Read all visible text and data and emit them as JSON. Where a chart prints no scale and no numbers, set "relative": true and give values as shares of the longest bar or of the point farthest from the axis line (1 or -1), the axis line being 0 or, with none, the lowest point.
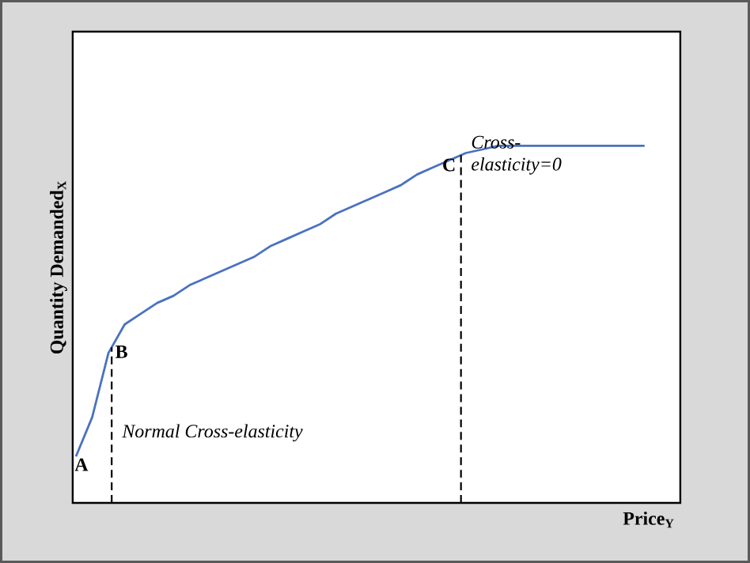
{
  "chart_data": {
    "type": "line",
    "relative": true,
    "xlabel": "Price$_{Y}$",
    "ylabel": "Quantity Demanded$_{X}$",
    "categories": [
      null,
      null,
      null,
      null,
      null,
      null,
      null,
      null,
      null,
      null,
      null,
      null,
      null,
      null,
      null,
      null,
      null,
      null,
      null,
      null,
      null,
      null,
      null,
      null,
      null,
      null,
      null,
      null,
      null,
      null,
      null,
      null,
      null,
      null,
      null,
      null
    ],
    "series": [
      {
        "color": "#4a72c0",
        "values": [
          0.13,
          0.24,
          0.42,
          0.5,
          0.53,
          0.56,
          0.58,
          0.61,
          0.63,
          0.65,
          0.67,
          0.69,
          0.72,
          0.74,
          0.76,
          0.78,
          0.81,
          0.83,
          0.85,
          0.87,
          0.89,
          0.92,
          0.94,
          0.96,
          0.98,
          0.99,
          1,
          1,
          1,
          1,
          1,
          1,
          1,
          1,
          1,
          1
        ]
      }
    ],
    "annotations": [
      "A",
      "B",
      "C",
      "Normal Cross-elasticity",
      "Cross-elasticity=0"
    ],
    "marker": "none",
    "line_style": "solid"
  }
}
